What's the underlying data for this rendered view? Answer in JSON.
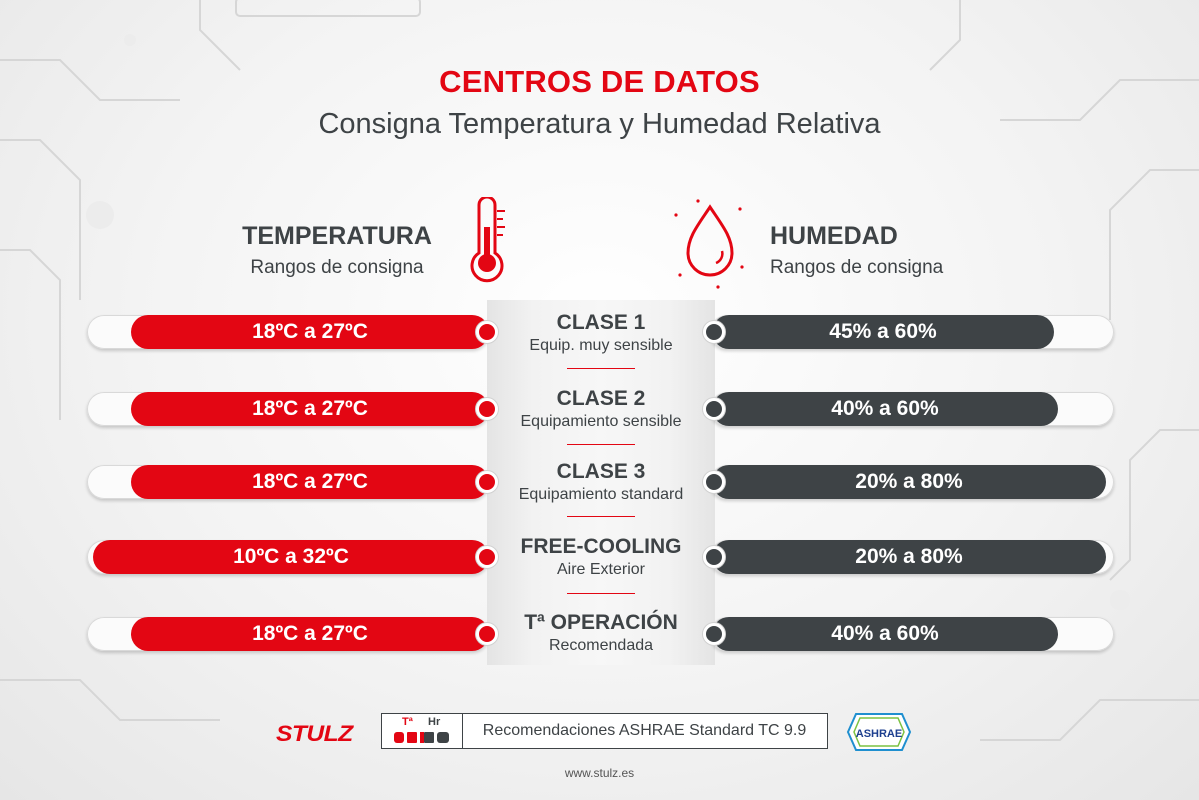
{
  "title": "CENTROS DE DATOS",
  "subtitle": "Consigna Temperatura y Humedad Relativa",
  "temperature": {
    "heading": "TEMPERATURA",
    "sub": "Rangos de consigna",
    "icon": "thermometer-icon"
  },
  "humidity": {
    "heading": "HUMEDAD",
    "sub": "Rangos de consigna",
    "icon": "water-drop-icon"
  },
  "rows": [
    {
      "name": "CLASE 1",
      "desc": "Equip. muy sensible",
      "temp": "18ºC a 27ºC",
      "hum": "45% a 60%"
    },
    {
      "name": "CLASE 2",
      "desc": "Equipamiento sensible",
      "temp": "18ºC a 27ºC",
      "hum": "40% a 60%"
    },
    {
      "name": "CLASE 3",
      "desc": "Equipamiento standard",
      "temp": "18ºC a 27ºC",
      "hum": "20% a 80%"
    },
    {
      "name": "FREE-COOLING",
      "desc": "Aire Exterior",
      "temp": "10ºC a 32ºC",
      "hum": "20% a 80%"
    },
    {
      "name": "Tª OPERACIÓN",
      "desc": "Recomendada",
      "temp": "18ºC a 27ºC",
      "hum": "40% a 60%"
    }
  ],
  "footer": {
    "brand": "STULZ",
    "badge_temp": "Tª",
    "badge_hum": "Hr",
    "badge_text_prefix": "Recomendaciones",
    "badge_text_strong": "ASHRAE",
    "badge_text_suffix": "Standard TC 9.9",
    "ashrae_logo": "ASHRAE",
    "url": "www.stulz.es"
  },
  "colors": {
    "red": "#e30613",
    "dark": "#3e4346"
  }
}
